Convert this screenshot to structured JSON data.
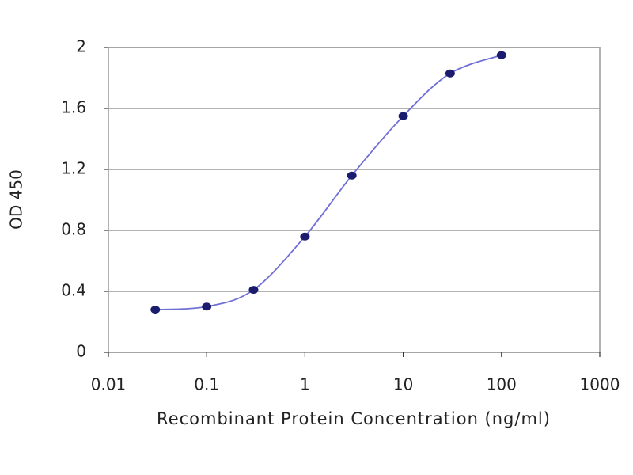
{
  "chart_data": {
    "type": "line",
    "x_label": "Recombinant Protein Concentration (ng/ml)",
    "y_label": "OD 450",
    "x": [
      0.03,
      0.1,
      0.3,
      1,
      3,
      10,
      30,
      100
    ],
    "series": [
      {
        "name": "OD 450",
        "color": "#6f6fd6",
        "marker_color": "#1c1c6e",
        "values": [
          0.28,
          0.3,
          0.41,
          0.76,
          1.16,
          1.55,
          1.83,
          1.95
        ]
      }
    ],
    "xlim": [
      0.01,
      1000
    ],
    "xticks": [
      0.01,
      0.1,
      1,
      10,
      100,
      1000
    ],
    "x_log": true,
    "ylim": [
      0,
      2
    ],
    "yticks": [
      0,
      0.4,
      0.8,
      1.2,
      1.6,
      2
    ],
    "grid": true
  }
}
